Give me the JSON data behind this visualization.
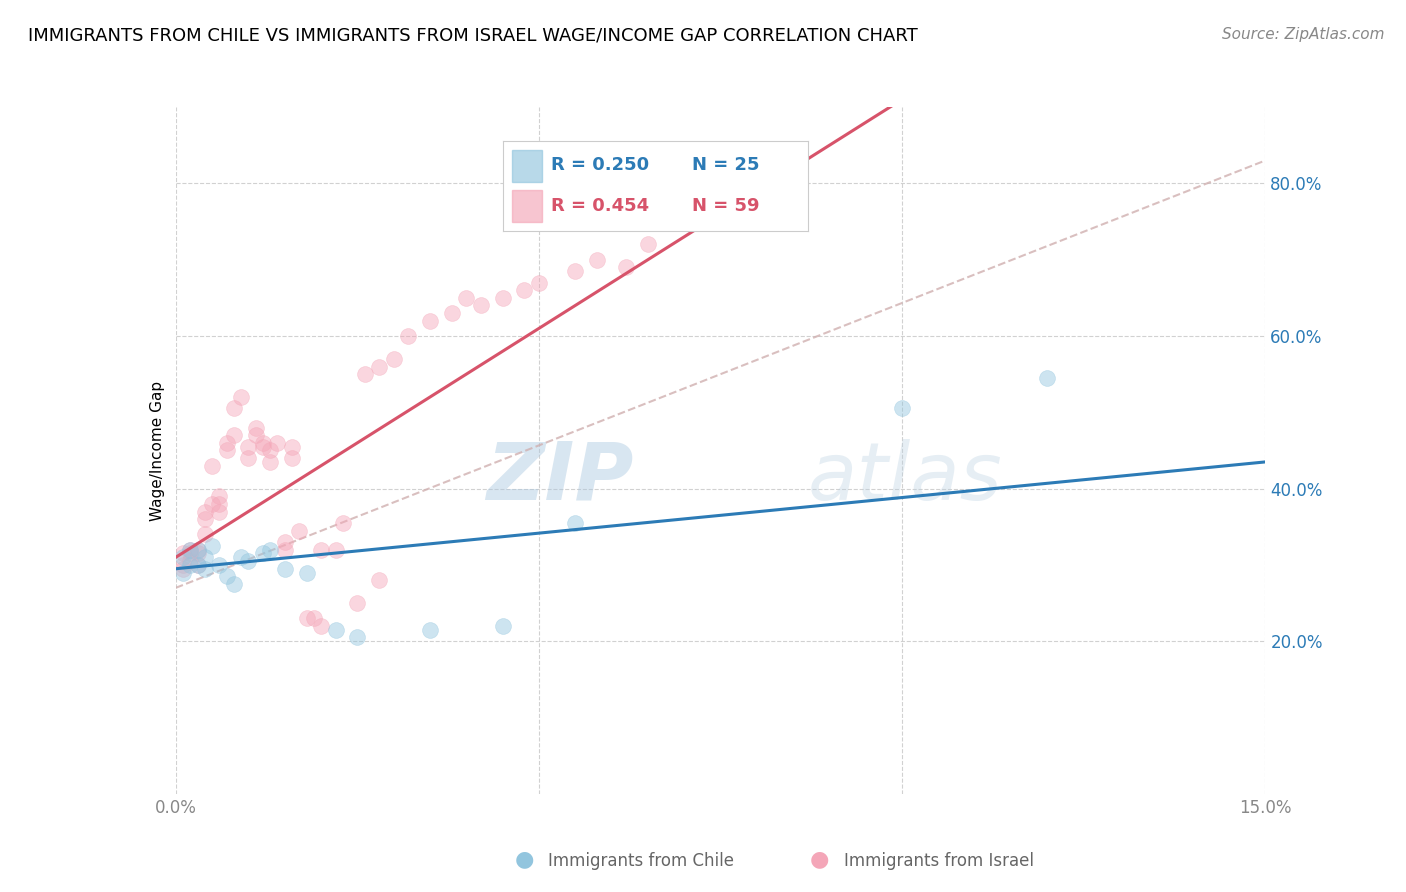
{
  "title": "IMMIGRANTS FROM CHILE VS IMMIGRANTS FROM ISRAEL WAGE/INCOME GAP CORRELATION CHART",
  "source": "Source: ZipAtlas.com",
  "ylabel": "Wage/Income Gap",
  "x_min": 0.0,
  "x_max": 0.15,
  "y_min": 0.0,
  "y_max": 0.9,
  "y_ticks": [
    0.2,
    0.4,
    0.6,
    0.8
  ],
  "y_tick_labels": [
    "20.0%",
    "40.0%",
    "60.0%",
    "80.0%"
  ],
  "x_ticks": [
    0.0,
    0.05,
    0.1,
    0.15
  ],
  "x_tick_labels": [
    "0.0%",
    "",
    "",
    "15.0%"
  ],
  "watermark_zip": "ZIP",
  "watermark_atlas": "atlas",
  "legend_R_chile": "R = 0.250",
  "legend_N_chile": "N = 25",
  "legend_R_israel": "R = 0.454",
  "legend_N_israel": "N = 59",
  "chile_color": "#92c5de",
  "israel_color": "#f4a6b8",
  "chile_line_color": "#2c7bb6",
  "israel_line_color": "#d7536a",
  "ref_line_color": "#d0b0b0",
  "background_color": "#ffffff",
  "chile_x": [
    0.001,
    0.001,
    0.002,
    0.002,
    0.003,
    0.003,
    0.004,
    0.004,
    0.005,
    0.006,
    0.007,
    0.008,
    0.009,
    0.01,
    0.012,
    0.013,
    0.015,
    0.018,
    0.022,
    0.025,
    0.035,
    0.045,
    0.055,
    0.1,
    0.12
  ],
  "chile_y": [
    0.31,
    0.29,
    0.3,
    0.32,
    0.3,
    0.32,
    0.295,
    0.31,
    0.325,
    0.3,
    0.285,
    0.275,
    0.31,
    0.305,
    0.315,
    0.32,
    0.295,
    0.29,
    0.215,
    0.205,
    0.215,
    0.22,
    0.355,
    0.505,
    0.545
  ],
  "israel_x": [
    0.001,
    0.001,
    0.001,
    0.002,
    0.002,
    0.002,
    0.003,
    0.003,
    0.003,
    0.004,
    0.004,
    0.004,
    0.005,
    0.005,
    0.006,
    0.006,
    0.006,
    0.007,
    0.007,
    0.008,
    0.008,
    0.009,
    0.01,
    0.01,
    0.011,
    0.011,
    0.012,
    0.012,
    0.013,
    0.013,
    0.014,
    0.015,
    0.015,
    0.016,
    0.016,
    0.017,
    0.018,
    0.019,
    0.02,
    0.02,
    0.022,
    0.023,
    0.025,
    0.026,
    0.028,
    0.028,
    0.03,
    0.032,
    0.035,
    0.038,
    0.04,
    0.042,
    0.045,
    0.048,
    0.05,
    0.055,
    0.058,
    0.062,
    0.065
  ],
  "israel_y": [
    0.3,
    0.315,
    0.295,
    0.315,
    0.305,
    0.32,
    0.32,
    0.3,
    0.315,
    0.34,
    0.36,
    0.37,
    0.43,
    0.38,
    0.39,
    0.37,
    0.38,
    0.45,
    0.46,
    0.47,
    0.505,
    0.52,
    0.44,
    0.455,
    0.48,
    0.47,
    0.46,
    0.455,
    0.435,
    0.45,
    0.46,
    0.32,
    0.33,
    0.44,
    0.455,
    0.345,
    0.23,
    0.23,
    0.32,
    0.22,
    0.32,
    0.355,
    0.25,
    0.55,
    0.56,
    0.28,
    0.57,
    0.6,
    0.62,
    0.63,
    0.65,
    0.64,
    0.65,
    0.66,
    0.67,
    0.685,
    0.7,
    0.69,
    0.72
  ],
  "title_fontsize": 13,
  "source_fontsize": 11,
  "label_fontsize": 11,
  "tick_fontsize": 12,
  "legend_fontsize": 13,
  "marker_size": 130,
  "marker_alpha": 0.45,
  "line_width": 2.2
}
